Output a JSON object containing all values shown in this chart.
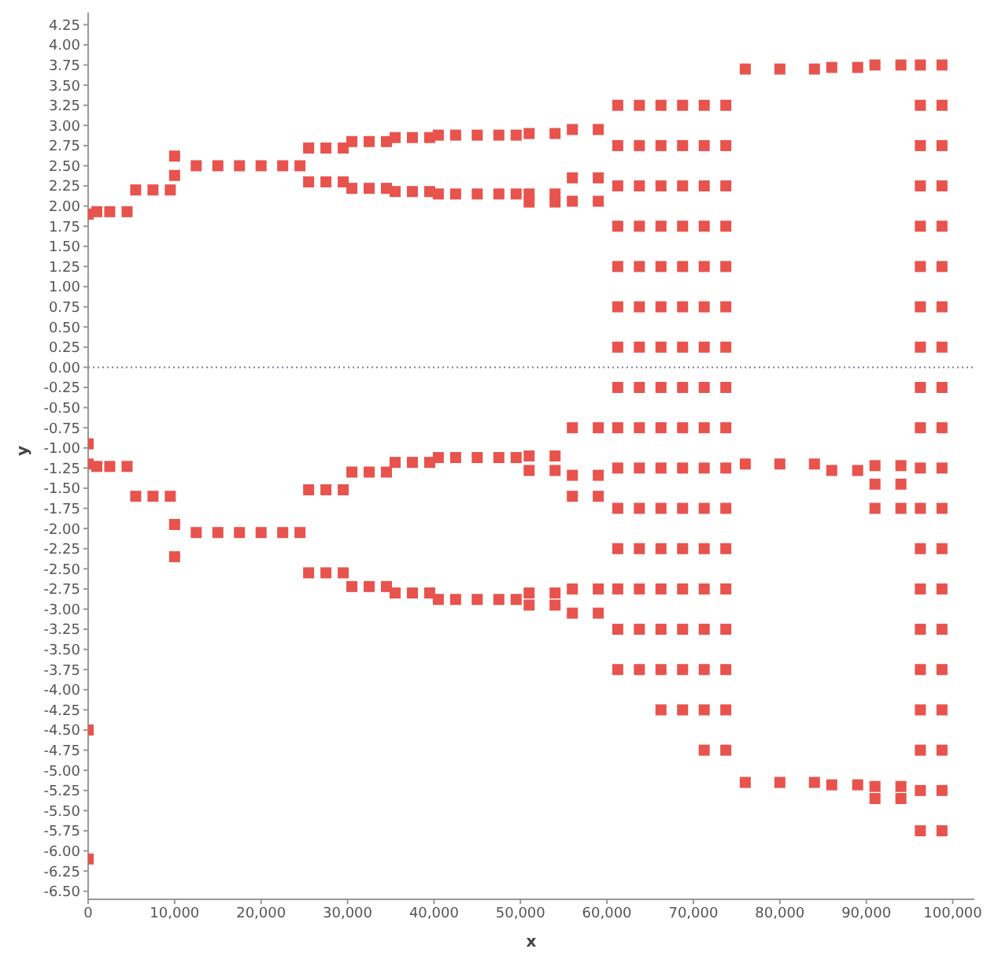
{
  "chart_data": {
    "type": "scatter",
    "xlabel": "x",
    "ylabel": "y",
    "marker": "square",
    "grid": false,
    "legend": false,
    "xlim": [
      0,
      102500
    ],
    "ylim": [
      -6.6,
      4.4
    ],
    "xticks": [
      0,
      {
        "value": 10000,
        "label": "10,000"
      },
      {
        "value": 20000,
        "label": "20,000"
      },
      {
        "value": 30000,
        "label": "30,000"
      },
      {
        "value": 40000,
        "label": "40,000"
      },
      {
        "value": 50000,
        "label": "50,000"
      },
      {
        "value": 60000,
        "label": "60,000"
      },
      {
        "value": 70000,
        "label": "70,000"
      },
      {
        "value": 80000,
        "label": "80,000"
      },
      {
        "value": 90000,
        "label": "90,000"
      },
      {
        "value": 100000,
        "label": "100,000"
      }
    ],
    "yticks": [
      {
        "value": 4.25,
        "label": "4.25"
      },
      {
        "value": 4,
        "label": "4.00"
      },
      {
        "value": 3.75,
        "label": "3.75"
      },
      {
        "value": 3.5,
        "label": "3.50"
      },
      {
        "value": 3.25,
        "label": "3.25"
      },
      {
        "value": 3,
        "label": "3.00"
      },
      {
        "value": 2.75,
        "label": "2.75"
      },
      {
        "value": 2.5,
        "label": "2.50"
      },
      {
        "value": 2.25,
        "label": "2.25"
      },
      {
        "value": 2,
        "label": "2.00"
      },
      {
        "value": 1.75,
        "label": "1.75"
      },
      {
        "value": 1.5,
        "label": "1.50"
      },
      {
        "value": 1.25,
        "label": "1.25"
      },
      {
        "value": 1,
        "label": "1.00"
      },
      {
        "value": 0.75,
        "label": "0.75"
      },
      {
        "value": 0.5,
        "label": "0.50"
      },
      {
        "value": 0.25,
        "label": "0.25"
      },
      {
        "value": 0,
        "label": "0.00"
      },
      {
        "value": -0.25,
        "label": "-0.25"
      },
      {
        "value": -0.5,
        "label": "-0.50"
      },
      {
        "value": -0.75,
        "label": "-0.75"
      },
      {
        "value": -1,
        "label": "-1.00"
      },
      {
        "value": -1.25,
        "label": "-1.25"
      },
      {
        "value": -1.5,
        "label": "-1.50"
      },
      {
        "value": -1.75,
        "label": "-1.75"
      },
      {
        "value": -2,
        "label": "-2.00"
      },
      {
        "value": -2.25,
        "label": "-2.25"
      },
      {
        "value": -2.5,
        "label": "-2.50"
      },
      {
        "value": -2.75,
        "label": "-2.75"
      },
      {
        "value": -3,
        "label": "-3.00"
      },
      {
        "value": -3.25,
        "label": "-3.25"
      },
      {
        "value": -3.5,
        "label": "-3.50"
      },
      {
        "value": -3.75,
        "label": "-3.75"
      },
      {
        "value": -4,
        "label": "-4.00"
      },
      {
        "value": -4.25,
        "label": "-4.25"
      },
      {
        "value": -4.5,
        "label": "-4.50"
      },
      {
        "value": -4.75,
        "label": "-4.75"
      },
      {
        "value": -5,
        "label": "-5.00"
      },
      {
        "value": -5.25,
        "label": "-5.25"
      },
      {
        "value": -5.5,
        "label": "-5.50"
      },
      {
        "value": -5.75,
        "label": "-5.75"
      },
      {
        "value": -6,
        "label": "-6.00"
      },
      {
        "value": -6.25,
        "label": "-6.25"
      },
      {
        "value": -6.5,
        "label": "-6.50"
      }
    ],
    "ref_lines": [
      {
        "axis": "y",
        "value": 0,
        "color": "#7a7a9a",
        "line_style": "dotted"
      }
    ],
    "series": [
      {
        "color": "#e8534d",
        "x": [
          0,
          0,
          0,
          0,
          0
        ],
        "values": [
          1.9,
          -0.95,
          -1.2,
          -4.5,
          -6.1
        ]
      },
      {
        "color": "#e8534d",
        "x": [
          1000,
          1000,
          2500,
          2500,
          4500,
          4500
        ],
        "values": [
          1.93,
          -1.23,
          1.93,
          -1.23,
          1.93,
          -1.23
        ]
      },
      {
        "color": "#e8534d",
        "x": [
          5500,
          5500,
          7500,
          7500,
          9500,
          9500
        ],
        "values": [
          2.2,
          -1.6,
          2.2,
          -1.6,
          2.2,
          -1.6
        ]
      },
      {
        "color": "#e8534d",
        "x": [
          10000,
          10000,
          10000,
          10000
        ],
        "values": [
          2.62,
          2.38,
          -1.95,
          -2.35
        ]
      },
      {
        "color": "#e8534d",
        "x": [
          12500,
          12500,
          15000,
          15000,
          17500,
          17500,
          20000,
          20000,
          22500,
          22500,
          24500,
          24500
        ],
        "values": [
          2.5,
          -2.05,
          2.5,
          -2.05,
          2.5,
          -2.05,
          2.5,
          -2.05,
          2.5,
          -2.05,
          2.5,
          -2.05
        ]
      },
      {
        "color": "#e8534d",
        "x": [
          25500,
          25500,
          25500,
          25500,
          27500,
          27500,
          27500,
          27500,
          29500,
          29500,
          29500,
          29500
        ],
        "values": [
          2.72,
          2.3,
          -1.52,
          -2.55,
          2.72,
          2.3,
          -1.52,
          -2.55,
          2.72,
          2.3,
          -1.52,
          -2.55
        ]
      },
      {
        "color": "#e8534d",
        "x": [
          30500,
          30500,
          30500,
          30500,
          32500,
          32500,
          32500,
          32500,
          34500,
          34500,
          34500,
          34500
        ],
        "values": [
          2.8,
          2.22,
          -1.3,
          -2.72,
          2.8,
          2.22,
          -1.3,
          -2.72,
          2.8,
          2.22,
          -1.3,
          -2.72
        ]
      },
      {
        "color": "#e8534d",
        "x": [
          35500,
          35500,
          35500,
          35500,
          37500,
          37500,
          37500,
          37500,
          39500,
          39500,
          39500,
          39500
        ],
        "values": [
          2.85,
          2.18,
          -1.18,
          -2.8,
          2.85,
          2.18,
          -1.18,
          -2.8,
          2.85,
          2.18,
          -1.18,
          -2.8
        ]
      },
      {
        "color": "#e8534d",
        "x": [
          40500,
          40500,
          40500,
          40500,
          42500,
          42500,
          42500,
          42500,
          45000,
          45000,
          45000,
          45000,
          47500,
          47500,
          47500,
          47500,
          49500,
          49500,
          49500,
          49500
        ],
        "values": [
          2.88,
          2.15,
          -1.12,
          -2.88,
          2.88,
          2.15,
          -1.12,
          -2.88,
          2.88,
          2.15,
          -1.12,
          -2.88,
          2.88,
          2.15,
          -1.12,
          -2.88,
          2.88,
          2.15,
          -1.12,
          -2.88
        ]
      },
      {
        "color": "#e8534d",
        "x": [
          51000,
          51000,
          51000,
          51000,
          51000,
          51000,
          51000,
          54000,
          54000,
          54000,
          54000,
          54000,
          54000,
          54000
        ],
        "values": [
          2.9,
          2.15,
          2.05,
          -1.1,
          -1.28,
          -2.8,
          -2.95,
          2.9,
          2.15,
          2.05,
          -1.1,
          -1.28,
          -2.8,
          -2.95
        ]
      },
      {
        "color": "#e8534d",
        "x": [
          56000,
          56000,
          56000,
          56000,
          56000,
          56000,
          56000,
          56000,
          59000,
          59000,
          59000,
          59000,
          59000,
          59000,
          59000,
          59000
        ],
        "values": [
          2.95,
          2.35,
          2.06,
          -0.75,
          -1.34,
          -1.6,
          -2.75,
          -3.05,
          2.95,
          2.35,
          2.06,
          -0.75,
          -1.34,
          -1.6,
          -2.75,
          -3.05
        ]
      },
      {
        "color": "#e8534d",
        "x": [
          61250,
          61250,
          61250,
          61250,
          61250,
          61250,
          61250,
          61250,
          61250,
          61250,
          61250,
          61250,
          61250,
          61250,
          61250
        ],
        "values": [
          -3.75,
          -3.25,
          -2.75,
          -2.25,
          -1.75,
          -1.25,
          -0.75,
          -0.25,
          0.25,
          0.75,
          1.25,
          1.75,
          2.25,
          2.75,
          3.25
        ]
      },
      {
        "color": "#e8534d",
        "x": [
          63750,
          63750,
          63750,
          63750,
          63750,
          63750,
          63750,
          63750,
          63750,
          63750,
          63750,
          63750,
          63750,
          63750,
          63750
        ],
        "values": [
          -3.75,
          -3.25,
          -2.75,
          -2.25,
          -1.75,
          -1.25,
          -0.75,
          -0.25,
          0.25,
          0.75,
          1.25,
          1.75,
          2.25,
          2.75,
          3.25
        ]
      },
      {
        "color": "#e8534d",
        "x": [
          66250,
          66250,
          66250,
          66250,
          66250,
          66250,
          66250,
          66250,
          66250,
          66250,
          66250,
          66250,
          66250,
          66250,
          66250,
          66250
        ],
        "values": [
          -4.25,
          -3.75,
          -3.25,
          -2.75,
          -2.25,
          -1.75,
          -1.25,
          -0.75,
          -0.25,
          0.25,
          0.75,
          1.25,
          1.75,
          2.25,
          2.75,
          3.25
        ]
      },
      {
        "color": "#e8534d",
        "x": [
          68750,
          68750,
          68750,
          68750,
          68750,
          68750,
          68750,
          68750,
          68750,
          68750,
          68750,
          68750,
          68750,
          68750,
          68750,
          68750
        ],
        "values": [
          -4.25,
          -3.75,
          -3.25,
          -2.75,
          -2.25,
          -1.75,
          -1.25,
          -0.75,
          -0.25,
          0.25,
          0.75,
          1.25,
          1.75,
          2.25,
          2.75,
          3.25
        ]
      },
      {
        "color": "#e8534d",
        "x": [
          71250,
          71250,
          71250,
          71250,
          71250,
          71250,
          71250,
          71250,
          71250,
          71250,
          71250,
          71250,
          71250,
          71250,
          71250,
          71250,
          71250
        ],
        "values": [
          -4.75,
          -4.25,
          -3.75,
          -3.25,
          -2.75,
          -2.25,
          -1.75,
          -1.25,
          -0.75,
          -0.25,
          0.25,
          0.75,
          1.25,
          1.75,
          2.25,
          2.75,
          3.25
        ]
      },
      {
        "color": "#e8534d",
        "x": [
          73750,
          73750,
          73750,
          73750,
          73750,
          73750,
          73750,
          73750,
          73750,
          73750,
          73750,
          73750,
          73750,
          73750,
          73750,
          73750,
          73750
        ],
        "values": [
          -4.75,
          -4.25,
          -3.75,
          -3.25,
          -2.75,
          -2.25,
          -1.75,
          -1.25,
          -0.75,
          -0.25,
          0.25,
          0.75,
          1.25,
          1.75,
          2.25,
          2.75,
          3.25
        ]
      },
      {
        "color": "#e8534d",
        "x": [
          76000,
          76000,
          76000,
          80000,
          80000,
          80000,
          84000,
          84000,
          84000
        ],
        "values": [
          3.7,
          -1.2,
          -5.15,
          3.7,
          -1.2,
          -5.15,
          3.7,
          -1.2,
          -5.15
        ]
      },
      {
        "color": "#e8534d",
        "x": [
          86000,
          86000,
          86000,
          89000,
          89000,
          89000
        ],
        "values": [
          3.72,
          -1.28,
          -5.18,
          3.72,
          -1.28,
          -5.18
        ]
      },
      {
        "color": "#e8534d",
        "x": [
          91000,
          91000,
          91000,
          91000,
          91000,
          91000,
          94000,
          94000,
          94000,
          94000,
          94000,
          94000
        ],
        "values": [
          3.75,
          -1.22,
          -1.45,
          -1.75,
          -5.2,
          -5.35,
          3.75,
          -1.22,
          -1.45,
          -1.75,
          -5.2,
          -5.35
        ]
      },
      {
        "color": "#e8534d",
        "x": [
          96250,
          96250,
          96250,
          96250,
          96250,
          96250,
          96250,
          96250,
          96250,
          96250,
          96250,
          96250,
          96250,
          96250,
          96250,
          96250,
          96250,
          96250,
          96250,
          96250
        ],
        "values": [
          -5.75,
          -5.25,
          -4.75,
          -4.25,
          -3.75,
          -3.25,
          -2.75,
          -2.25,
          -1.75,
          -1.25,
          -0.75,
          -0.25,
          0.25,
          0.75,
          1.25,
          1.75,
          2.25,
          2.75,
          3.25,
          3.75
        ]
      },
      {
        "color": "#e8534d",
        "x": [
          98750,
          98750,
          98750,
          98750,
          98750,
          98750,
          98750,
          98750,
          98750,
          98750,
          98750,
          98750,
          98750,
          98750,
          98750,
          98750,
          98750,
          98750,
          98750,
          98750
        ],
        "values": [
          -5.75,
          -5.25,
          -4.75,
          -4.25,
          -3.75,
          -3.25,
          -2.75,
          -2.25,
          -1.75,
          -1.25,
          -0.75,
          -0.25,
          0.25,
          0.75,
          1.25,
          1.75,
          2.25,
          2.75,
          3.25,
          3.75
        ]
      }
    ]
  }
}
